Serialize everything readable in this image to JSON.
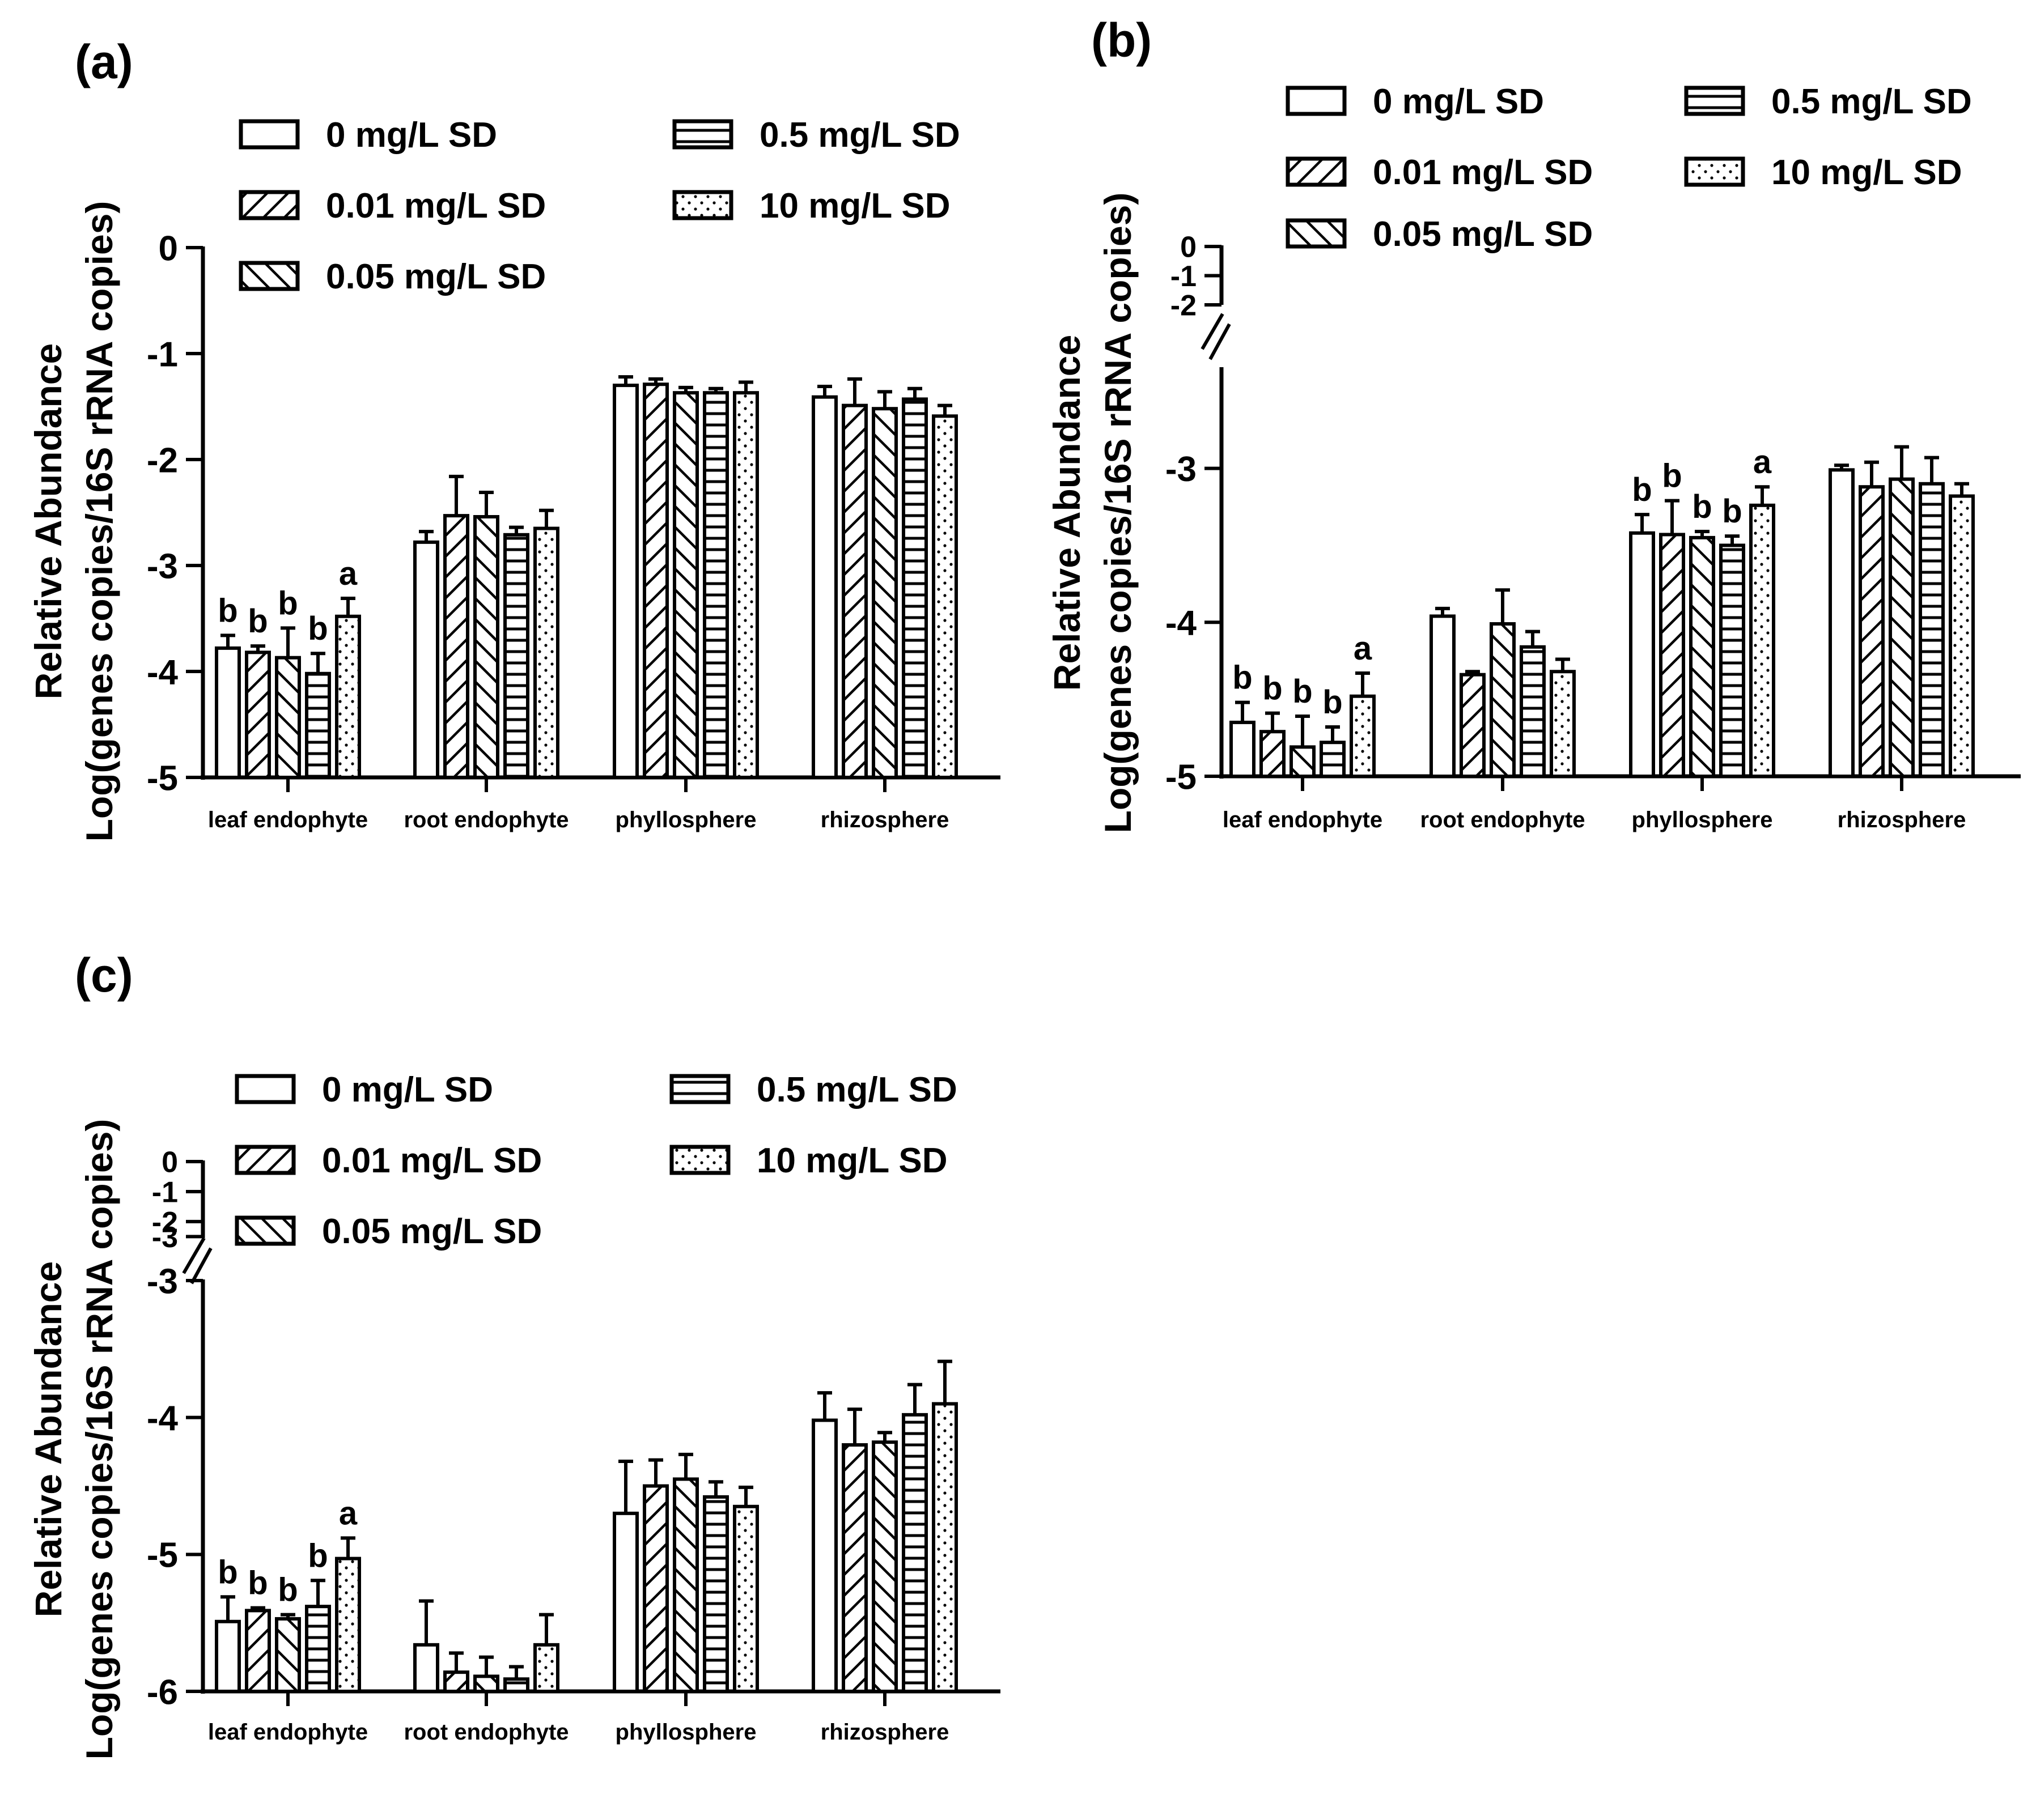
{
  "figure": {
    "legend_labels": [
      "0 mg/L SD",
      "0.01 mg/L SD",
      "0.05 mg/L SD",
      "0.5 mg/L SD",
      "10 mg/L SD"
    ],
    "legend_patterns": [
      "empty",
      "diagonal-right",
      "diagonal-left",
      "horizontal",
      "dotted"
    ],
    "bar_stroke_color": "#000000",
    "background_color": "#ffffff"
  },
  "chart_data": [
    {
      "panel_label": "(a)",
      "type": "bar",
      "title": "",
      "xlabel": "",
      "ylabel_lines": [
        "Relative Abundance",
        "Log(genes copies/16S rRNA copies)"
      ],
      "categories": [
        "leaf endophyte",
        "root endophyte",
        "phyllosphere",
        "rhizosphere"
      ],
      "ylim": [
        -5,
        0
      ],
      "yticks": [
        "0",
        "-1",
        "-2",
        "-3",
        "-4",
        "-5"
      ],
      "axis_break": false,
      "grid": false,
      "legend_placement": "top",
      "series": [
        {
          "name": "0 mg/L SD",
          "values": [
            -3.78,
            -2.78,
            -1.3,
            -1.41
          ],
          "errors": [
            0.12,
            0.1,
            0.08,
            0.1
          ]
        },
        {
          "name": "0.01 mg/L SD",
          "values": [
            -3.82,
            -2.53,
            -1.29,
            -1.49
          ],
          "errors": [
            0.06,
            0.37,
            0.05,
            0.25
          ]
        },
        {
          "name": "0.05 mg/L SD",
          "values": [
            -3.87,
            -2.54,
            -1.37,
            -1.52
          ],
          "errors": [
            0.28,
            0.23,
            0.05,
            0.16
          ]
        },
        {
          "name": "0.5 mg/L SD",
          "values": [
            -4.02,
            -2.71,
            -1.37,
            -1.43
          ],
          "errors": [
            0.19,
            0.07,
            0.04,
            0.1
          ]
        },
        {
          "name": "10 mg/L SD",
          "values": [
            -3.48,
            -2.65,
            -1.37,
            -1.59
          ],
          "errors": [
            0.17,
            0.17,
            0.1,
            0.1
          ]
        }
      ],
      "letters": [
        [
          "b",
          "b",
          "b",
          "b",
          "a"
        ],
        [
          "",
          "",
          "",
          "",
          ""
        ],
        [
          "",
          "",
          "",
          "",
          ""
        ],
        [
          "",
          "",
          "",
          "",
          ""
        ]
      ]
    },
    {
      "panel_label": "(b)",
      "type": "bar",
      "title": "",
      "xlabel": "",
      "ylabel_lines": [
        "Relative Abundance",
        "Log(genes copies/16S rRNA copies)"
      ],
      "categories": [
        "leaf endophyte",
        "root endophyte",
        "phyllosphere",
        "rhizosphere"
      ],
      "ylim": [
        -5,
        0
      ],
      "yticks": [
        "0",
        "-1",
        "-2",
        "-3",
        "-4",
        "-5"
      ],
      "axis_break": true,
      "axis_break_range": [
        -2.35,
        -2.0
      ],
      "grid": false,
      "legend_placement": "top",
      "series": [
        {
          "name": "0 mg/L SD",
          "values": [
            -4.65,
            -3.96,
            -3.42,
            -3.01
          ],
          "errors": [
            0.13,
            0.05,
            0.12,
            0.03
          ]
        },
        {
          "name": "0.01 mg/L SD",
          "values": [
            -4.71,
            -4.34,
            -3.43,
            -3.12
          ],
          "errors": [
            0.12,
            0.02,
            0.22,
            0.16
          ]
        },
        {
          "name": "0.05 mg/L SD",
          "values": [
            -4.81,
            -4.01,
            -3.45,
            -3.07
          ],
          "errors": [
            0.2,
            0.22,
            0.04,
            0.21
          ]
        },
        {
          "name": "0.5 mg/L SD",
          "values": [
            -4.78,
            -4.16,
            -3.5,
            -3.1
          ],
          "errors": [
            0.1,
            0.1,
            0.06,
            0.17
          ]
        },
        {
          "name": "10 mg/L SD",
          "values": [
            -4.48,
            -4.32,
            -3.24,
            -3.18
          ],
          "errors": [
            0.15,
            0.08,
            0.12,
            0.08
          ]
        }
      ],
      "letters": [
        [
          "b",
          "b",
          "b",
          "b",
          "a"
        ],
        [
          "",
          "",
          "",
          "",
          ""
        ],
        [
          "b",
          "b",
          "b",
          "b",
          "a"
        ],
        [
          "",
          "",
          "",
          "",
          ""
        ]
      ]
    },
    {
      "panel_label": "(c)",
      "type": "bar",
      "title": "",
      "xlabel": "",
      "ylabel_lines": [
        "Relative Abundance",
        "Log(genes copies/16S rRNA copies)"
      ],
      "categories": [
        "leaf endophyte",
        "root endophyte",
        "phyllosphere",
        "rhizosphere"
      ],
      "ylim": [
        -6,
        0
      ],
      "yticks": [
        "0",
        "-1",
        "-2",
        "-3",
        "-3",
        "-4",
        "-5",
        "-6"
      ],
      "axis_break": true,
      "axis_break_range": [
        -3.0,
        -2.55
      ],
      "grid": false,
      "legend_placement": "top",
      "series": [
        {
          "name": "0 mg/L SD",
          "values": [
            -5.49,
            -5.66,
            -4.7,
            -4.02
          ],
          "errors": [
            0.18,
            0.32,
            0.38,
            0.2
          ]
        },
        {
          "name": "0.01 mg/L SD",
          "values": [
            -5.41,
            -5.86,
            -4.5,
            -4.2
          ],
          "errors": [
            0.02,
            0.14,
            0.19,
            0.26
          ]
        },
        {
          "name": "0.05 mg/L SD",
          "values": [
            -5.47,
            -5.89,
            -4.45,
            -4.18
          ],
          "errors": [
            0.03,
            0.14,
            0.18,
            0.07
          ]
        },
        {
          "name": "0.5 mg/L SD",
          "values": [
            -5.38,
            -5.91,
            -4.58,
            -3.98
          ],
          "errors": [
            0.19,
            0.09,
            0.11,
            0.22
          ]
        },
        {
          "name": "10 mg/L SD",
          "values": [
            -5.03,
            -5.66,
            -4.65,
            -3.9
          ],
          "errors": [
            0.15,
            0.22,
            0.14,
            0.31
          ]
        }
      ],
      "letters": [
        [
          "b",
          "b",
          "b",
          "b",
          "a"
        ],
        [
          "",
          "",
          "",
          "",
          ""
        ],
        [
          "",
          "",
          "",
          "",
          ""
        ],
        [
          "",
          "",
          "",
          "",
          ""
        ]
      ]
    }
  ]
}
